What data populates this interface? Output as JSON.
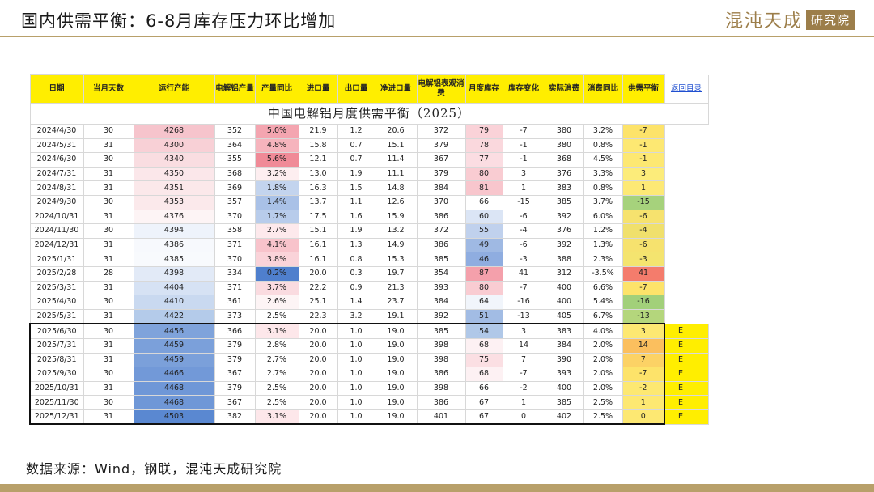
{
  "page": {
    "title": "国内供需平衡：6-8月库存压力环比增加",
    "logo_main": "混沌天成",
    "logo_box": "研究院",
    "source": "数据来源：Wind，钢联，混沌天成研究院"
  },
  "table": {
    "caption": "中国电解铝月度供需平衡（2025）",
    "headers": [
      "日期",
      "当月天数",
      "运行产能",
      "电解铝产量",
      "产量同比",
      "进口量",
      "出口量",
      "净进口量",
      "电解铝表观消费",
      "月度库存",
      "库存变化",
      "实际消费",
      "消费同比",
      "供需平衡",
      "返回目录"
    ],
    "rows": [
      [
        "2024/4/30",
        "30",
        "4268",
        "352",
        "5.0%",
        "21.9",
        "1.2",
        "20.6",
        "372",
        "79",
        "-7",
        "380",
        "3.2%",
        "-7",
        ""
      ],
      [
        "2024/5/31",
        "31",
        "4300",
        "364",
        "4.8%",
        "15.8",
        "0.7",
        "15.1",
        "379",
        "78",
        "-1",
        "380",
        "0.8%",
        "-1",
        ""
      ],
      [
        "2024/6/30",
        "30",
        "4340",
        "355",
        "5.6%",
        "12.1",
        "0.7",
        "11.4",
        "367",
        "77",
        "-1",
        "368",
        "4.5%",
        "-1",
        ""
      ],
      [
        "2024/7/31",
        "31",
        "4350",
        "368",
        "3.2%",
        "13.0",
        "1.9",
        "11.1",
        "379",
        "80",
        "3",
        "376",
        "3.3%",
        "3",
        ""
      ],
      [
        "2024/8/31",
        "31",
        "4351",
        "369",
        "1.8%",
        "16.3",
        "1.5",
        "14.8",
        "384",
        "81",
        "1",
        "383",
        "0.8%",
        "1",
        ""
      ],
      [
        "2024/9/30",
        "30",
        "4353",
        "357",
        "1.4%",
        "13.7",
        "1.1",
        "12.6",
        "370",
        "66",
        "-15",
        "385",
        "3.7%",
        "-15",
        ""
      ],
      [
        "2024/10/31",
        "31",
        "4376",
        "370",
        "1.7%",
        "17.5",
        "1.6",
        "15.9",
        "386",
        "60",
        "-6",
        "392",
        "6.0%",
        "-6",
        ""
      ],
      [
        "2024/11/30",
        "30",
        "4394",
        "358",
        "2.7%",
        "15.1",
        "1.9",
        "13.2",
        "372",
        "55",
        "-4",
        "376",
        "1.2%",
        "-4",
        ""
      ],
      [
        "2024/12/31",
        "31",
        "4386",
        "371",
        "4.1%",
        "16.1",
        "1.3",
        "14.9",
        "386",
        "49",
        "-6",
        "392",
        "1.3%",
        "-6",
        ""
      ],
      [
        "2025/1/31",
        "31",
        "4385",
        "370",
        "3.8%",
        "16.1",
        "0.8",
        "15.3",
        "385",
        "46",
        "-3",
        "388",
        "2.3%",
        "-3",
        ""
      ],
      [
        "2025/2/28",
        "28",
        "4398",
        "334",
        "0.2%",
        "20.0",
        "0.3",
        "19.7",
        "354",
        "87",
        "41",
        "312",
        "-3.5%",
        "41",
        ""
      ],
      [
        "2025/3/31",
        "31",
        "4404",
        "371",
        "3.7%",
        "22.2",
        "0.9",
        "21.3",
        "393",
        "80",
        "-7",
        "400",
        "6.6%",
        "-7",
        ""
      ],
      [
        "2025/4/30",
        "30",
        "4410",
        "361",
        "2.6%",
        "25.1",
        "1.4",
        "23.7",
        "384",
        "64",
        "-16",
        "400",
        "5.4%",
        "-16",
        ""
      ],
      [
        "2025/5/31",
        "31",
        "4422",
        "373",
        "2.5%",
        "22.3",
        "3.2",
        "19.1",
        "392",
        "51",
        "-13",
        "405",
        "6.7%",
        "-13",
        ""
      ],
      [
        "2025/6/30",
        "30",
        "4456",
        "366",
        "3.1%",
        "20.0",
        "1.0",
        "19.0",
        "385",
        "54",
        "3",
        "383",
        "4.0%",
        "3",
        "E"
      ],
      [
        "2025/7/31",
        "31",
        "4459",
        "379",
        "2.8%",
        "20.0",
        "1.0",
        "19.0",
        "398",
        "68",
        "14",
        "384",
        "2.0%",
        "14",
        "E"
      ],
      [
        "2025/8/31",
        "31",
        "4459",
        "379",
        "2.7%",
        "20.0",
        "1.0",
        "19.0",
        "398",
        "75",
        "7",
        "390",
        "2.0%",
        "7",
        "E"
      ],
      [
        "2025/9/30",
        "30",
        "4466",
        "367",
        "2.7%",
        "20.0",
        "1.0",
        "19.0",
        "386",
        "68",
        "-7",
        "393",
        "2.0%",
        "-7",
        "E"
      ],
      [
        "2025/10/31",
        "31",
        "4468",
        "379",
        "2.5%",
        "20.0",
        "1.0",
        "19.0",
        "398",
        "66",
        "-2",
        "400",
        "2.0%",
        "-2",
        "E"
      ],
      [
        "2025/11/30",
        "30",
        "4468",
        "367",
        "2.5%",
        "20.0",
        "1.0",
        "19.0",
        "386",
        "67",
        "1",
        "385",
        "2.5%",
        "1",
        "E"
      ],
      [
        "2025/12/31",
        "31",
        "4503",
        "382",
        "3.1%",
        "20.0",
        "1.0",
        "19.0",
        "401",
        "67",
        "0",
        "402",
        "2.5%",
        "0",
        "E"
      ]
    ],
    "cell_colors": {
      "2": [
        "#f6c4cc",
        "#f8d0d6",
        "#f9dde1",
        "#fbe7ea",
        "#fbe8ea",
        "#fbe9eb",
        "#fdf4f5",
        "#eef3fb",
        "#f7f9fd",
        "#f8fafd",
        "#e2eaf7",
        "#d6e2f4",
        "#c9d9f0",
        "#b4cbea",
        "#7fa3db",
        "#7ba0da",
        "#7ba0da",
        "#7299d8",
        "#6f97d7",
        "#6f97d7",
        "#5a88d1"
      ],
      "4": [
        "#f4a5b0",
        "#f6b4bd",
        "#f08a97",
        "#fdeef0",
        "#c3d4ee",
        "#a9c1e7",
        "#b8cceb",
        "#fde9ec",
        "#f8c3cb",
        "#fad3d9",
        "#4f7fcd",
        "#fadbe0",
        "#fdf4f5",
        "#ffffff",
        "#fde7ea",
        "#ffffff",
        "#ffffff",
        "#ffffff",
        "#ffffff",
        "#ffffff",
        "#fde7ea"
      ],
      "9": [
        "#fad2d8",
        "#fad8dd",
        "#fbdde2",
        "#f9ccd2",
        "#f8c6cd",
        "#ffffff",
        "#dbe5f5",
        "#c0d1ed",
        "#9fb9e3",
        "#8fade0",
        "#f4a0ab",
        "#f9ccd2",
        "#f1f5fb",
        "#a2bce4",
        "#b0c8e8",
        "#fdf1f3",
        "#fbdfe3",
        "#fdf1f3",
        "#ffffff",
        "#ffffff",
        "#ffffff"
      ],
      "13": [
        "#fde36a",
        "#fde872",
        "#fde872",
        "#fcec7a",
        "#fde975",
        "#a6d27c",
        "#f6e26e",
        "#f0e06c",
        "#f6e26e",
        "#f4e46f",
        "#f47c6c",
        "#fde36a",
        "#a2d07a",
        "#b4d67c",
        "#fde872",
        "#fbbf5e",
        "#fcd265",
        "#fde36a",
        "#fde872",
        "#fde872",
        "#fde872"
      ]
    }
  }
}
